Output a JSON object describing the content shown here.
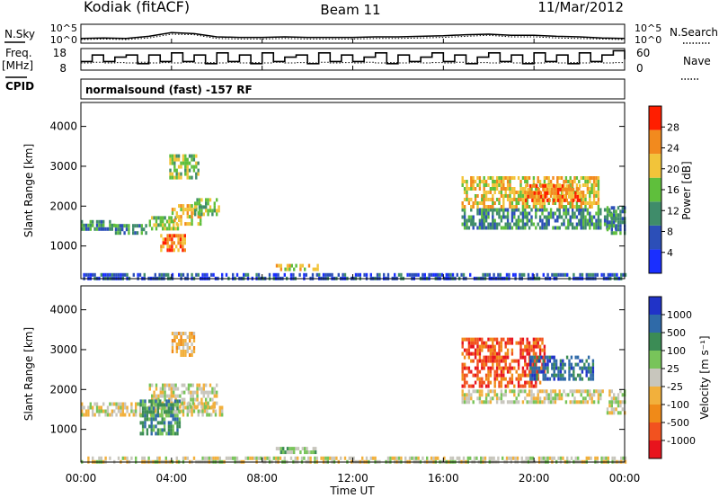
{
  "header": {
    "station": "Kodiak (fitACF)",
    "beam": "Beam 11",
    "date": "11/Mar/2012",
    "mode": "normalsound (fast) -157 RF"
  },
  "chart_data": [
    {
      "type": "line",
      "panel": "noise",
      "left_label": "N.Sky",
      "right_label": "N.Search",
      "left_ticks": [
        "10^5",
        "10^0"
      ],
      "right_ticks": [
        "10^5",
        "10^0"
      ],
      "x": [
        "00:00",
        "01:00",
        "02:00",
        "03:00",
        "04:00",
        "05:00",
        "06:00",
        "07:00",
        "08:00",
        "09:00",
        "10:00",
        "11:00",
        "12:00",
        "13:00",
        "14:00",
        "15:00",
        "16:00",
        "17:00",
        "18:00",
        "19:00",
        "20:00",
        "21:00",
        "22:00",
        "23:00",
        "24:00"
      ],
      "series": [
        {
          "name": "N.Sky",
          "style": "solid",
          "values": [
            1.2,
            1.3,
            1.2,
            1.6,
            2.3,
            2.1,
            1.5,
            1.4,
            1.4,
            1.5,
            1.4,
            1.4,
            1.4,
            1.5,
            1.5,
            1.6,
            1.7,
            1.9,
            2.0,
            1.8,
            1.8,
            1.6,
            1.5,
            1.3,
            1.2
          ]
        },
        {
          "name": "N.Search",
          "style": "dotted",
          "values": [
            1.0,
            1.1,
            1.0,
            1.3,
            2.0,
            1.9,
            1.2,
            1.1,
            1.1,
            1.2,
            1.1,
            1.1,
            1.1,
            1.2,
            1.2,
            1.3,
            1.4,
            1.6,
            1.8,
            1.5,
            1.5,
            1.3,
            1.2,
            1.1,
            1.0
          ]
        }
      ]
    },
    {
      "type": "line",
      "panel": "frequency",
      "left_label": "Freq.",
      "left_unit": "[MHz]",
      "right_label": "Nave",
      "left_ticks": [
        "18",
        "8"
      ],
      "right_ticks": [
        "60",
        "0"
      ],
      "x_hours": [
        0,
        0.5,
        1,
        1.5,
        2,
        2.5,
        3,
        3.5,
        4,
        4.5,
        5,
        5.5,
        6,
        6.5,
        7,
        7.5,
        8,
        8.5,
        9,
        9.5,
        10,
        10.5,
        11,
        11.5,
        12,
        12.5,
        13,
        13.5,
        14,
        14.5,
        15,
        15.5,
        16,
        16.5,
        17,
        17.5,
        18,
        18.5,
        19,
        19.5,
        20,
        20.5,
        21,
        21.5,
        22,
        22.5,
        23,
        23.5,
        24
      ],
      "series": [
        {
          "name": "Freq.",
          "style": "solid",
          "values": [
            12,
            15,
            12,
            14,
            15,
            11,
            15,
            12,
            16,
            12,
            15,
            11,
            16,
            12,
            15,
            11,
            16,
            12,
            14,
            15,
            11,
            16,
            12,
            15,
            12,
            14,
            16,
            11,
            15,
            12,
            14,
            16,
            12,
            15,
            11,
            14,
            16,
            12,
            15,
            11,
            16,
            12,
            15,
            11,
            16,
            12,
            15,
            17,
            13
          ]
        },
        {
          "name": "Nave",
          "style": "dotted",
          "values": [
            20,
            22,
            20,
            21,
            20,
            22,
            20,
            21,
            20,
            22,
            20,
            21,
            20,
            22,
            20,
            21,
            20,
            22,
            20,
            21,
            20,
            22,
            20,
            21,
            20,
            22,
            20,
            21,
            20,
            22,
            20,
            21,
            20,
            22,
            20,
            21,
            20,
            22,
            20,
            21,
            20,
            22,
            20,
            21,
            20,
            22,
            20,
            21,
            20
          ]
        }
      ]
    },
    {
      "type": "heatmap",
      "panel": "power",
      "ylabel": "Slant Range [km]",
      "yticks": [
        1000,
        2000,
        3000,
        4000
      ],
      "ylim": [
        180,
        4600
      ],
      "colorbar_label": "Power [dB]",
      "colorbar_ticks": [
        4,
        8,
        12,
        16,
        20,
        24,
        28
      ],
      "colors": [
        "#1a2fff",
        "#2c4fb8",
        "#3f8c6a",
        "#5fbf3c",
        "#f2c43a",
        "#f28a1e",
        "#ff1e00"
      ],
      "blobs": [
        {
          "t0": 0.0,
          "t1": 1.5,
          "r0": 1380,
          "r1": 1650,
          "level": 2
        },
        {
          "t0": 1.5,
          "t1": 3.0,
          "r0": 1300,
          "r1": 1550,
          "level": 2
        },
        {
          "t0": 3.0,
          "t1": 4.3,
          "r0": 1400,
          "r1": 1750,
          "level": 3
        },
        {
          "t0": 4.0,
          "t1": 5.3,
          "r0": 1550,
          "r1": 2050,
          "level": 4
        },
        {
          "t0": 3.5,
          "t1": 4.6,
          "r0": 850,
          "r1": 1300,
          "level": 5
        },
        {
          "t0": 5.0,
          "t1": 6.1,
          "r0": 1800,
          "r1": 2200,
          "level": 3
        },
        {
          "t0": 3.9,
          "t1": 5.2,
          "r0": 2700,
          "r1": 3300,
          "level": 3
        },
        {
          "t0": 8.6,
          "t1": 10.5,
          "r0": 400,
          "r1": 550,
          "level": 4
        },
        {
          "t0": 16.8,
          "t1": 23.6,
          "r0": 1450,
          "r1": 1950,
          "level": 2
        },
        {
          "t0": 16.8,
          "t1": 22.8,
          "r0": 2000,
          "r1": 2750,
          "level": 4
        },
        {
          "t0": 19.5,
          "t1": 22.0,
          "r0": 2150,
          "r1": 2550,
          "level": 5
        },
        {
          "t0": 23.2,
          "t1": 24.0,
          "r0": 1300,
          "r1": 2000,
          "level": 2
        },
        {
          "t0": 0.0,
          "t1": 24.0,
          "r0": 190,
          "r1": 320,
          "level": 1
        }
      ]
    },
    {
      "type": "heatmap",
      "panel": "velocity",
      "ylabel": "Slant Range [km]",
      "yticks": [
        1000,
        2000,
        3000,
        4000
      ],
      "ylim": [
        180,
        4600
      ],
      "xlabel": "Time UT",
      "xticks": [
        "00:00",
        "04:00",
        "08:00",
        "12:00",
        "16:00",
        "20:00",
        "00:00"
      ],
      "colorbar_label": "Velocity [m s⁻¹]",
      "colorbar_ticks": [
        -1000,
        -500,
        -100,
        -25,
        25,
        100,
        500,
        1000
      ],
      "colors": [
        "#e8141d",
        "#f2521f",
        "#f08a18",
        "#f2b03c",
        "#c8c6bd",
        "#78c45a",
        "#3b8c55",
        "#2f6aa8",
        "#2033c8"
      ],
      "blobs": [
        {
          "t0": 0.0,
          "t1": 6.2,
          "r0": 1380,
          "r1": 1680,
          "level": 4
        },
        {
          "t0": 3.0,
          "t1": 6.0,
          "r0": 1600,
          "r1": 2150,
          "level": 4
        },
        {
          "t0": 2.6,
          "t1": 4.4,
          "r0": 850,
          "r1": 1750,
          "level": 6
        },
        {
          "t0": 4.0,
          "t1": 5.0,
          "r0": 2900,
          "r1": 3450,
          "level": 3
        },
        {
          "t0": 8.6,
          "t1": 10.4,
          "r0": 420,
          "r1": 560,
          "level": 5
        },
        {
          "t0": 16.8,
          "t1": 23.0,
          "r0": 1650,
          "r1": 2000,
          "level": 4
        },
        {
          "t0": 16.8,
          "t1": 20.5,
          "r0": 2100,
          "r1": 3300,
          "level": 1
        },
        {
          "t0": 19.8,
          "t1": 22.6,
          "r0": 2300,
          "r1": 2850,
          "level": 7
        },
        {
          "t0": 23.2,
          "t1": 24.0,
          "r0": 1400,
          "r1": 2000,
          "level": 4
        },
        {
          "t0": 0.0,
          "t1": 24.0,
          "r0": 190,
          "r1": 320,
          "level": 4
        }
      ]
    }
  ]
}
